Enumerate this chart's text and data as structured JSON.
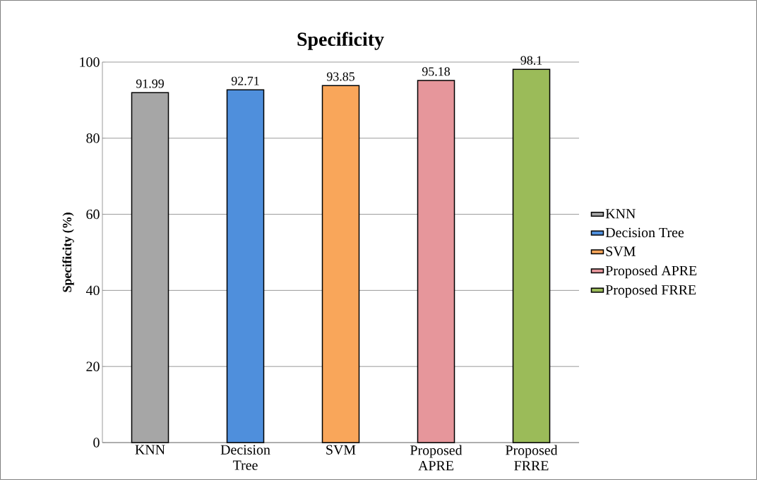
{
  "chart_data": {
    "type": "bar",
    "title": "Specificity",
    "ylabel": "Specificity (%)",
    "categories": [
      "KNN",
      "Decision Tree",
      "SVM",
      "Proposed APRE",
      "Proposed FRRE"
    ],
    "series": [
      {
        "name": "KNN",
        "color": "#a6a6a6",
        "values": [
          91.99,
          null,
          null,
          null,
          null
        ]
      },
      {
        "name": "Decision Tree",
        "color": "#4f8fdc",
        "values": [
          null,
          92.71,
          null,
          null,
          null
        ]
      },
      {
        "name": "SVM",
        "color": "#f9a65a",
        "values": [
          null,
          null,
          93.85,
          null,
          null
        ]
      },
      {
        "name": "Proposed APRE",
        "color": "#e6969b",
        "values": [
          null,
          null,
          null,
          95.18,
          null
        ]
      },
      {
        "name": "Proposed FRRE",
        "color": "#9bbb59",
        "values": [
          null,
          null,
          null,
          null,
          98.1
        ]
      }
    ],
    "ylim": [
      0,
      100
    ],
    "yticks": [
      0,
      20,
      40,
      60,
      80,
      100
    ],
    "grid": "y",
    "data_labels": true,
    "legend": "right"
  }
}
